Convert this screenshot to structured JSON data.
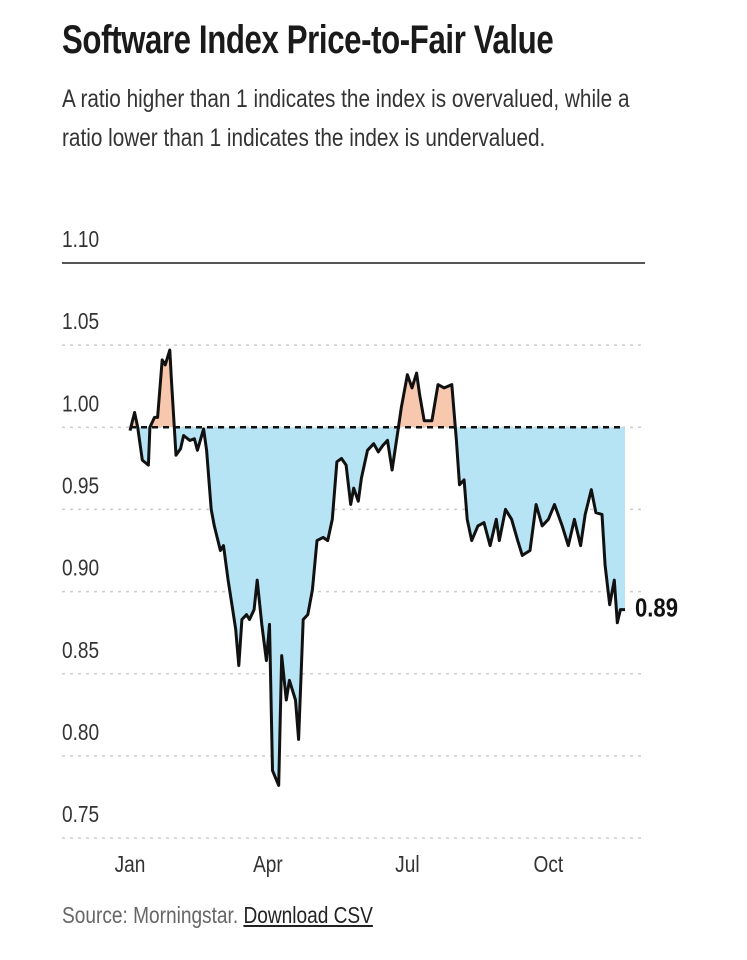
{
  "chart_data": {
    "type": "line",
    "title": "Software Index Price-to-Fair Value",
    "subtitle": "A ratio higher than 1 indicates the index is overvalued, while a ratio lower than 1 indicates the index is undervalued.",
    "source": "Source: Morningstar.",
    "link": "Download CSV",
    "end_label": "0.89",
    "reference_line": 1,
    "color": "#111111",
    "above_color": "#f7c8ad",
    "below_color": "#b6e4f4",
    "xlim": [
      0,
      323
    ],
    "xticks": [
      {
        "value": 0,
        "label": "Jan"
      },
      {
        "value": 90,
        "label": "Apr"
      },
      {
        "value": 181,
        "label": "Jul"
      },
      {
        "value": 273,
        "label": "Oct"
      }
    ],
    "ylim": [
      0.75,
      1.1
    ],
    "yticks": [
      {
        "value": 0.75,
        "label": "0.75"
      },
      {
        "value": 0.8,
        "label": "0.80"
      },
      {
        "value": 0.85,
        "label": "0.85"
      },
      {
        "value": 0.9,
        "label": "0.90"
      },
      {
        "value": 0.95,
        "label": "0.95"
      },
      {
        "value": 1.0,
        "label": "1.00"
      },
      {
        "value": 1.05,
        "label": "1.05"
      },
      {
        "value": 1.1,
        "label": "1.10"
      }
    ],
    "grid": true,
    "x": [
      0,
      3,
      5,
      8,
      12,
      13,
      16,
      18,
      21,
      23,
      26,
      27,
      30,
      33,
      35,
      39,
      42,
      44,
      48,
      50,
      53,
      55,
      59,
      61,
      64,
      67,
      69,
      71,
      73,
      76,
      78,
      81,
      83,
      86,
      89,
      91,
      93,
      97,
      99,
      102,
      104,
      108,
      110,
      113,
      116,
      119,
      122,
      126,
      129,
      132,
      135,
      138,
      141,
      144,
      146,
      149,
      151,
      155,
      159,
      162,
      165,
      168,
      171,
      175,
      177,
      181,
      184,
      187,
      189,
      192,
      197,
      201,
      205,
      210,
      213,
      215,
      218,
      220,
      223,
      227,
      231,
      235,
      239,
      241,
      245,
      249,
      253,
      256,
      261,
      265,
      269,
      273,
      277,
      282,
      286,
      290,
      294,
      297,
      301,
      304,
      308,
      310,
      313,
      316,
      318,
      320,
      323
    ],
    "values": [
      0.998,
      1.009,
      1.0,
      0.98,
      0.977,
      1.0,
      1.006,
      1.006,
      1.041,
      1.038,
      1.047,
      1.029,
      0.983,
      0.987,
      0.995,
      0.992,
      0.993,
      0.986,
      0.999,
      0.986,
      0.95,
      0.94,
      0.925,
      0.928,
      0.907,
      0.889,
      0.877,
      0.855,
      0.883,
      0.886,
      0.883,
      0.889,
      0.907,
      0.88,
      0.858,
      0.88,
      0.791,
      0.782,
      0.861,
      0.834,
      0.846,
      0.834,
      0.81,
      0.883,
      0.886,
      0.901,
      0.931,
      0.933,
      0.931,
      0.944,
      0.979,
      0.981,
      0.977,
      0.953,
      0.963,
      0.955,
      0.969,
      0.986,
      0.99,
      0.985,
      0.989,
      0.992,
      0.974,
      0.999,
      1.012,
      1.032,
      1.024,
      1.033,
      1.02,
      1.004,
      1.004,
      1.026,
      1.024,
      1.026,
      0.992,
      0.965,
      0.968,
      0.944,
      0.931,
      0.94,
      0.942,
      0.928,
      0.944,
      0.931,
      0.95,
      0.944,
      0.931,
      0.922,
      0.925,
      0.953,
      0.94,
      0.944,
      0.953,
      0.94,
      0.928,
      0.944,
      0.928,
      0.947,
      0.962,
      0.948,
      0.947,
      0.916,
      0.892,
      0.907,
      0.881,
      0.889,
      0.889
    ]
  }
}
